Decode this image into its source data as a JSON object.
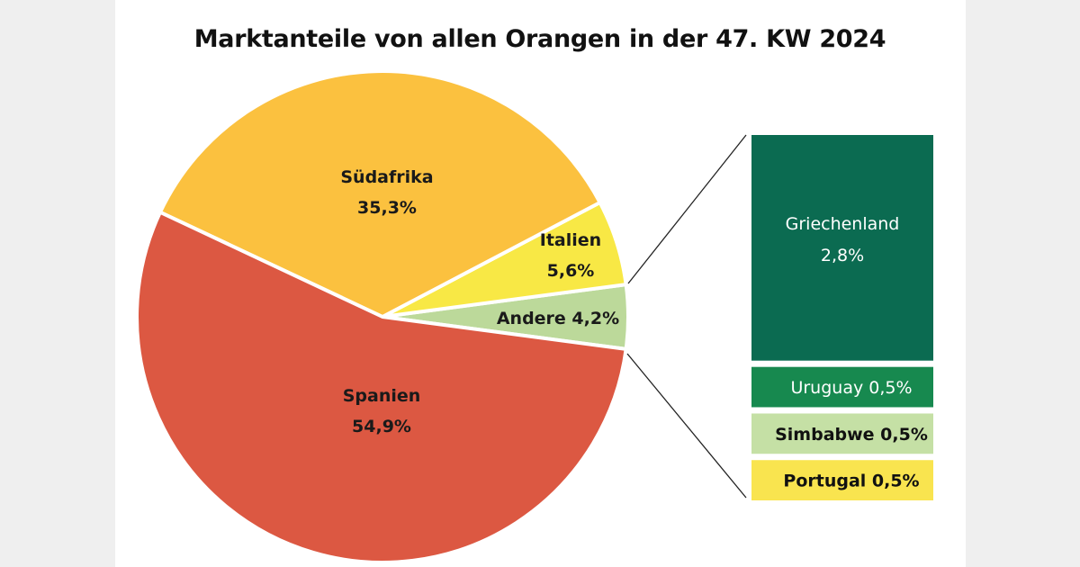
{
  "chart_data": {
    "type": "pie",
    "title": "Marktanteile von allen Orangen in der 47. KW 2024",
    "slices": [
      {
        "label": "Andere",
        "value": 4.2,
        "value_label": "4,2%",
        "color": "#bcd99a"
      },
      {
        "label": "Italien",
        "value": 5.6,
        "value_label": "5,6%",
        "color": "#f8e845"
      },
      {
        "label": "Südafrika",
        "value": 35.3,
        "value_label": "35,3%",
        "color": "#fbc13f"
      },
      {
        "label": "Spanien",
        "value": 54.9,
        "value_label": "54,9%",
        "color": "#dc5842"
      }
    ],
    "breakdown_of": "Andere",
    "breakdown_type": "stacked-bar",
    "breakdown": [
      {
        "label": "Griechenland",
        "value": 2.8,
        "value_label": "2,8%",
        "color": "#0b6b51",
        "text_color": "#ffffff"
      },
      {
        "label": "Uruguay",
        "value": 0.5,
        "value_label": "0,5%",
        "color": "#17894f",
        "text_color": "#ffffff"
      },
      {
        "label": "Simbabwe",
        "value": 0.5,
        "value_label": "0,5%",
        "color": "#c5e0a5",
        "text_color": "#111111"
      },
      {
        "label": "Portugal",
        "value": 0.5,
        "value_label": "0,5%",
        "color": "#f9e44f",
        "text_color": "#111111"
      }
    ]
  }
}
